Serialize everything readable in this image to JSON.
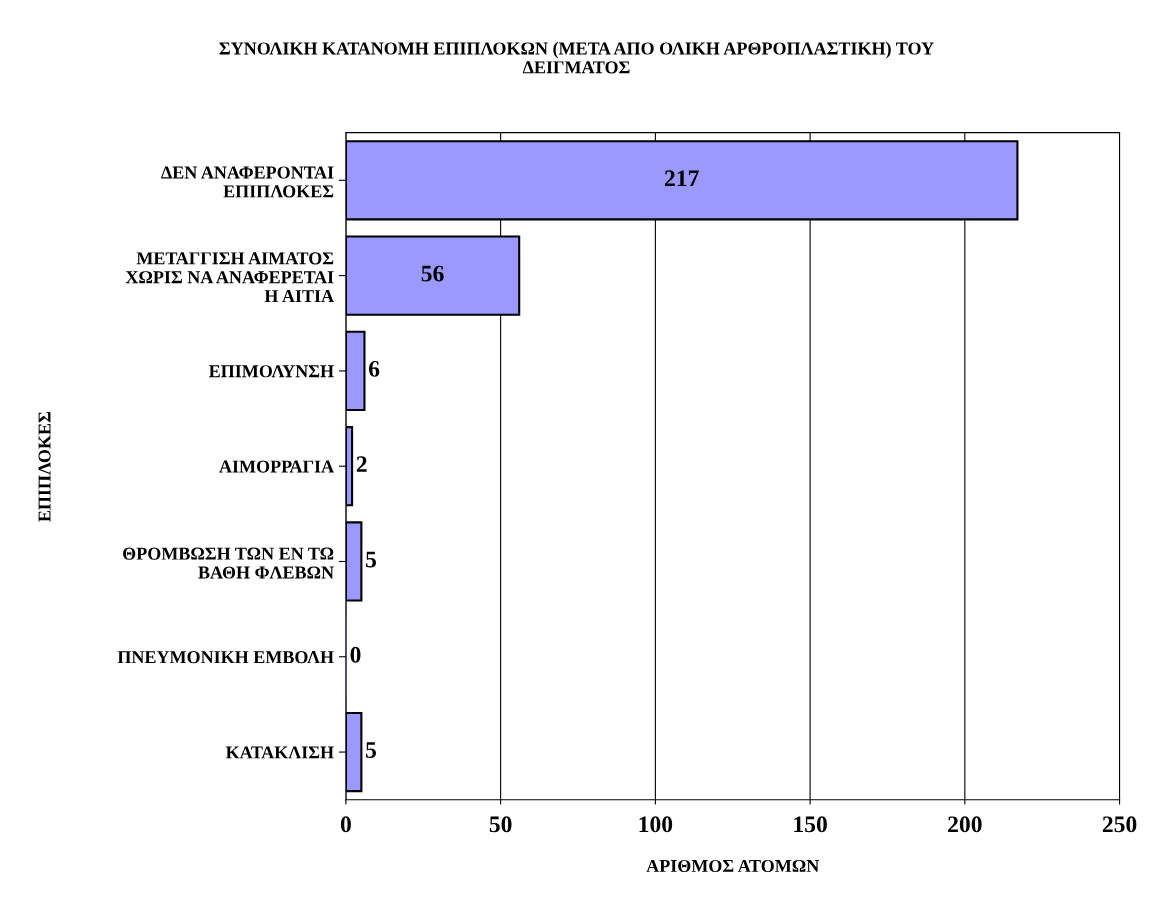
{
  "chart_data": {
    "type": "bar",
    "orientation": "horizontal",
    "title": "ΣΥΝΟΛΙΚΗ ΚΑΤΑΝΟΜΗ ΕΠΙΠΛΟΚΩΝ (ΜΕΤΑ ΑΠΟ ΟΛΙΚΗ ΑΡΘΡΟΠΛΑΣΤΙΚΗ) ΤΟΥ\nΔΕΙΓΜΑΤΟΣ",
    "xlabel": "ΑΡΙΘΜΟΣ ΑΤΟΜΩΝ",
    "ylabel": "ΕΠΙΠΛΟΚΕΣ",
    "categories": [
      "ΔΕΝ ΑΝΑΦΕΡΟΝΤΑΙ\nΕΠΙΠΛΟΚΕΣ",
      "ΜΕΤΑΓΓΙΣΗ ΑΙΜΑΤΟΣ\nΧΩΡΙΣ ΝΑ ΑΝΑΦΕΡΕΤΑΙ\nΗ ΑΙΤΙΑ",
      "ΕΠΙΜΟΛΥΝΣΗ",
      "ΑΙΜΟΡΡΑΓΙΑ",
      "ΘΡΟΜΒΩΣΗ ΤΩΝ ΕΝ ΤΩ\nΒΑΘΗ ΦΛΕΒΩΝ",
      "ΠΝΕΥΜΟΝΙΚΗ ΕΜΒΟΛΗ",
      "ΚΑΤΑΚΛΙΣΗ"
    ],
    "values": [
      217,
      56,
      6,
      2,
      5,
      0,
      5
    ],
    "color": "#9999ff",
    "xlim": [
      0,
      250
    ],
    "xticks": [
      0,
      50,
      100,
      150,
      200,
      250
    ],
    "grid": "x",
    "data_labels": true
  }
}
